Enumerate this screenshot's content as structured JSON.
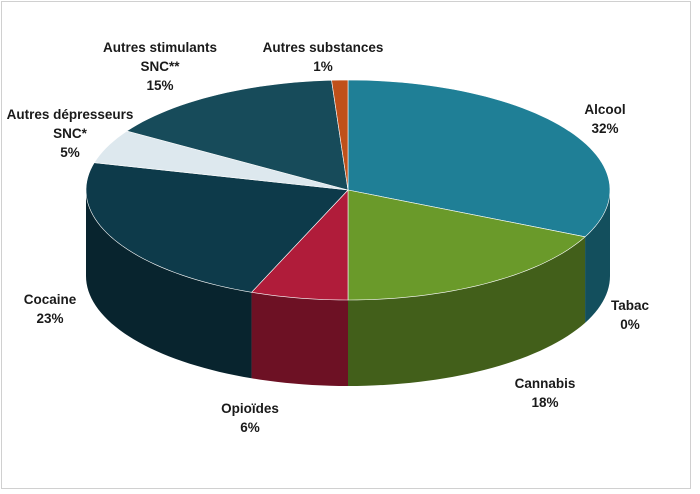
{
  "chart_data": {
    "type": "pie",
    "categories": [
      "Alcool",
      "Tabac",
      "Cannabis",
      "Opioïdes",
      "Cocaine",
      "Autres dépresseurs SNC*",
      "Autres stimulants SNC**",
      "Autres substances"
    ],
    "values": [
      32,
      0,
      18,
      6,
      23,
      5,
      15,
      1
    ],
    "value_labels": [
      "32%",
      "0%",
      "18%",
      "6%",
      "23%",
      "5%",
      "15%",
      "1%"
    ],
    "colors": [
      "#1f7f96",
      "#8a8a8a",
      "#6a9a2a",
      "#b01c3a",
      "#0d3a4a",
      "#dde8ee",
      "#174b5a",
      "#c0501a"
    ]
  }
}
